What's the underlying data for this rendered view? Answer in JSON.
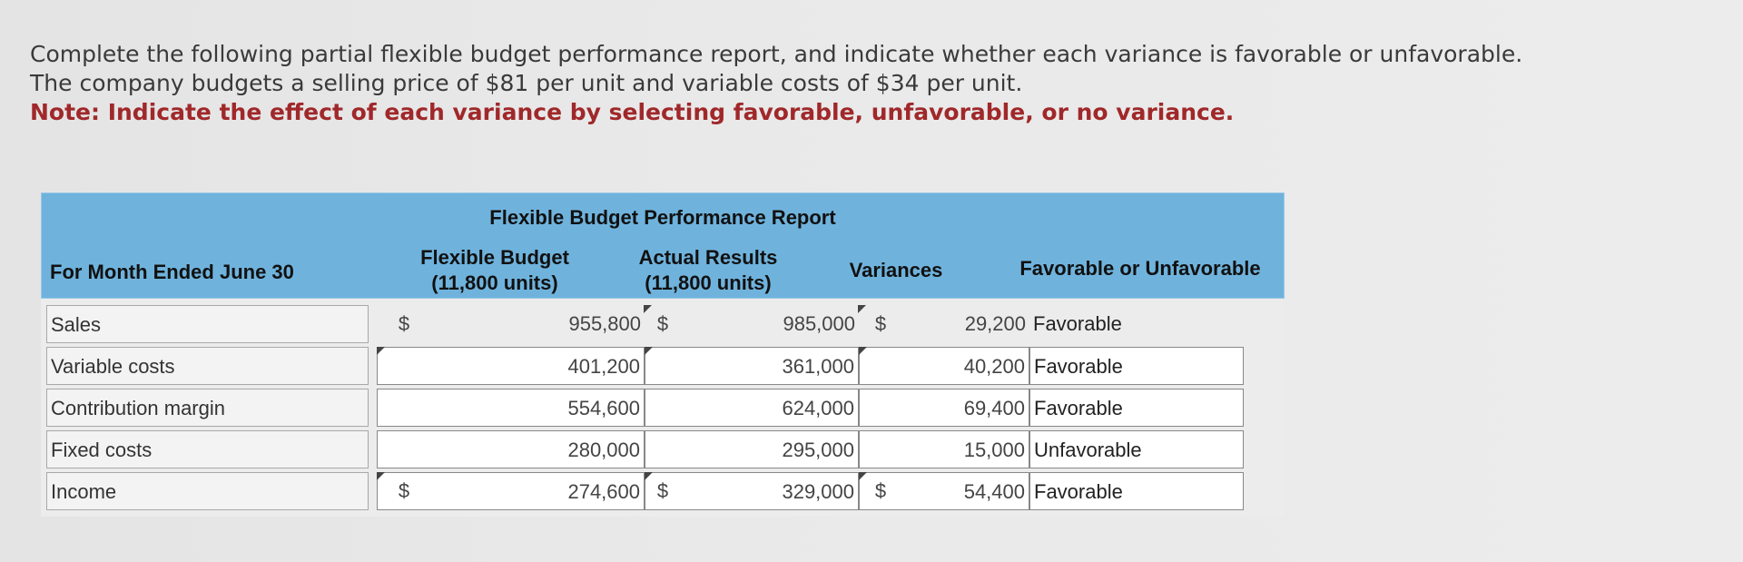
{
  "instructions": {
    "line1": "Complete the following partial flexible budget performance report, and indicate whether each variance is favorable or unfavorable.",
    "line2": "The company budgets a selling price of $81 per unit and variable costs of $34 per unit.",
    "note": "Note: Indicate the effect of each variance by selecting favorable, unfavorable, or no variance."
  },
  "report": {
    "title": "Flexible Budget Performance Report",
    "period": "For Month Ended June 30",
    "flex_header": "Flexible Budget",
    "flex_units": "(11,800 units)",
    "actual_header": "Actual Results",
    "actual_units": "(11,800 units)",
    "variances_header": "Variances",
    "fav_header": "Favorable or Unfavorable",
    "currency_symbol": "$",
    "rows": [
      {
        "label": "Sales",
        "flexible": "955,800",
        "actual": "985,000",
        "variance": "29,200",
        "effect": "Favorable"
      },
      {
        "label": "Variable costs",
        "flexible": "401,200",
        "actual": "361,000",
        "variance": "40,200",
        "effect": "Favorable"
      },
      {
        "label": "Contribution margin",
        "flexible": "554,600",
        "actual": "624,000",
        "variance": "69,400",
        "effect": "Favorable"
      },
      {
        "label": "Fixed costs",
        "flexible": "280,000",
        "actual": "295,000",
        "variance": "15,000",
        "effect": "Unfavorable"
      },
      {
        "label": "Income",
        "flexible": "274,600",
        "actual": "329,000",
        "variance": "54,400",
        "effect": "Favorable"
      }
    ]
  }
}
